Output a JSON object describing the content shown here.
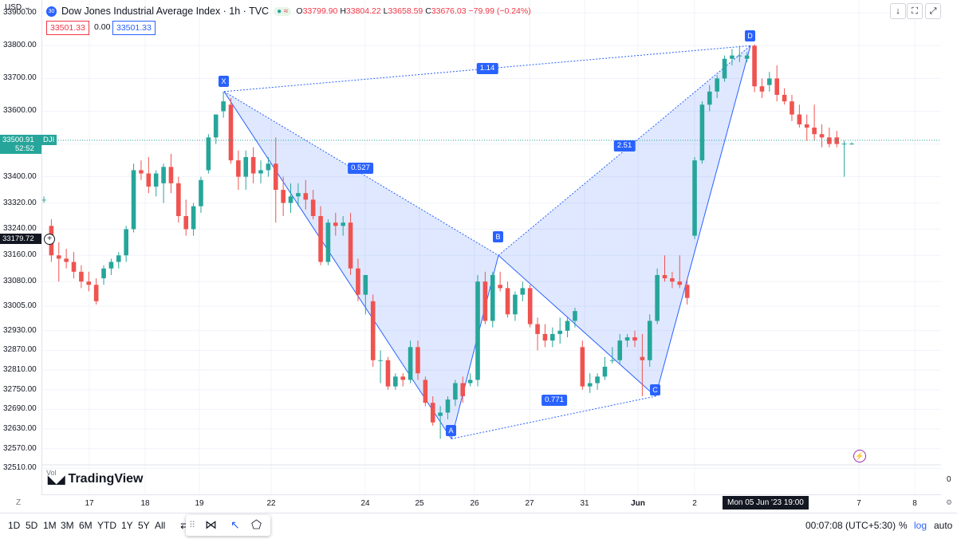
{
  "header": {
    "currency": "USD",
    "badge": "30",
    "symbol_title": "Dow Jones Industrial Average Index · 1h · TVC",
    "ohlc": {
      "open_label": "O",
      "open": "33799.90",
      "high_label": "H",
      "high": "33804.22",
      "low_label": "L",
      "low": "33658.59",
      "close_label": "C",
      "close": "33676.03",
      "change": "−79.99 (−0.24%)"
    },
    "inputs": [
      "33501.33",
      "0.00",
      "33501.33"
    ]
  },
  "y_axis": {
    "ticks": [
      "33900.00",
      "33800.00",
      "33700.00",
      "33600.00",
      "33500.00",
      "33400.00",
      "33320.00",
      "33240.00",
      "33160.00",
      "33080.00",
      "33005.00",
      "32930.00",
      "32870.00",
      "32810.00",
      "32750.00",
      "32690.00",
      "32630.00",
      "32570.00",
      "32510.00"
    ],
    "current_price": "33500.91",
    "current_symbol": "DJI",
    "countdown": "52:52",
    "crosshair_price": "33179.72"
  },
  "right_scale": {
    "label": "0"
  },
  "x_axis": {
    "ticks": [
      "17",
      "18",
      "19",
      "22",
      "24",
      "25",
      "26",
      "27",
      "31",
      "Jun",
      "2",
      "7",
      "8"
    ],
    "crosshair_label": "Mon 05 Jun '23   19:00"
  },
  "pattern": {
    "points": [
      "X",
      "A",
      "B",
      "C",
      "D"
    ],
    "ratios": [
      "1.14",
      "0.527",
      "2.51",
      "0.771"
    ]
  },
  "watermark": {
    "text": "TradingView",
    "vol_label": "Vol"
  },
  "bottom_bar": {
    "timeframes": [
      "1D",
      "5D",
      "1M",
      "3M",
      "6M",
      "YTD",
      "1Y",
      "5Y",
      "All"
    ],
    "clock": "00:07:08 (UTC+5:30)",
    "percent": "%",
    "log": "log",
    "auto": "auto"
  },
  "colors": {
    "up": "#26a69a",
    "down": "#ef5350",
    "pattern": "#2962ff",
    "fill": "rgba(41,98,255,0.15)"
  },
  "chart_data": {
    "type": "candlestick",
    "title": "Dow Jones Industrial Average Index · 1h · TVC",
    "ylim": [
      32450,
      33920
    ],
    "candles": [
      {
        "o": 33330,
        "h": 33340,
        "l": 33320,
        "c": 33330
      },
      {
        "o": 33250,
        "h": 33270,
        "l": 33140,
        "c": 33160
      },
      {
        "o": 33160,
        "h": 33200,
        "l": 33080,
        "c": 33150
      },
      {
        "o": 33150,
        "h": 33180,
        "l": 33120,
        "c": 33140
      },
      {
        "o": 33140,
        "h": 33170,
        "l": 33090,
        "c": 33110
      },
      {
        "o": 33110,
        "h": 33130,
        "l": 33060,
        "c": 33080
      },
      {
        "o": 33080,
        "h": 33110,
        "l": 33050,
        "c": 33070
      },
      {
        "o": 33070,
        "h": 33090,
        "l": 33010,
        "c": 33020
      },
      {
        "o": 33090,
        "h": 33130,
        "l": 33070,
        "c": 33120
      },
      {
        "o": 33120,
        "h": 33150,
        "l": 33100,
        "c": 33140
      },
      {
        "o": 33140,
        "h": 33170,
        "l": 33120,
        "c": 33160
      },
      {
        "o": 33160,
        "h": 33250,
        "l": 33140,
        "c": 33240
      },
      {
        "o": 33240,
        "h": 33440,
        "l": 33230,
        "c": 33420
      },
      {
        "o": 33420,
        "h": 33450,
        "l": 33390,
        "c": 33410
      },
      {
        "o": 33410,
        "h": 33460,
        "l": 33350,
        "c": 33370
      },
      {
        "o": 33370,
        "h": 33420,
        "l": 33340,
        "c": 33410
      },
      {
        "o": 33380,
        "h": 33440,
        "l": 33320,
        "c": 33430
      },
      {
        "o": 33430,
        "h": 33470,
        "l": 33350,
        "c": 33380
      },
      {
        "o": 33380,
        "h": 33400,
        "l": 33260,
        "c": 33280
      },
      {
        "o": 33280,
        "h": 33330,
        "l": 33220,
        "c": 33240
      },
      {
        "o": 33240,
        "h": 33320,
        "l": 33220,
        "c": 33310
      },
      {
        "o": 33310,
        "h": 33400,
        "l": 33290,
        "c": 33390
      },
      {
        "o": 33420,
        "h": 33530,
        "l": 33410,
        "c": 33520
      },
      {
        "o": 33520,
        "h": 33590,
        "l": 33500,
        "c": 33590
      },
      {
        "o": 33600,
        "h": 33660,
        "l": 33580,
        "c": 33630
      },
      {
        "o": 33620,
        "h": 33640,
        "l": 33440,
        "c": 33450
      },
      {
        "o": 33450,
        "h": 33480,
        "l": 33360,
        "c": 33400
      },
      {
        "o": 33400,
        "h": 33480,
        "l": 33360,
        "c": 33460
      },
      {
        "o": 33460,
        "h": 33490,
        "l": 33380,
        "c": 33410
      },
      {
        "o": 33410,
        "h": 33450,
        "l": 33380,
        "c": 33420
      },
      {
        "o": 33420,
        "h": 33460,
        "l": 33400,
        "c": 33440
      },
      {
        "o": 33440,
        "h": 33520,
        "l": 33260,
        "c": 33360
      },
      {
        "o": 33360,
        "h": 33400,
        "l": 33280,
        "c": 33320
      },
      {
        "o": 33320,
        "h": 33380,
        "l": 33290,
        "c": 33340
      },
      {
        "o": 33340,
        "h": 33380,
        "l": 33310,
        "c": 33350
      },
      {
        "o": 33350,
        "h": 33390,
        "l": 33300,
        "c": 33330
      },
      {
        "o": 33330,
        "h": 33360,
        "l": 33270,
        "c": 33280
      },
      {
        "o": 33280,
        "h": 33310,
        "l": 33130,
        "c": 33140
      },
      {
        "o": 33140,
        "h": 33270,
        "l": 33130,
        "c": 33260
      },
      {
        "o": 33260,
        "h": 33290,
        "l": 33220,
        "c": 33250
      },
      {
        "o": 33250,
        "h": 33280,
        "l": 33220,
        "c": 33260
      },
      {
        "o": 33260,
        "h": 33290,
        "l": 33100,
        "c": 33120
      },
      {
        "o": 33120,
        "h": 33150,
        "l": 33020,
        "c": 33040
      },
      {
        "o": 33040,
        "h": 33100,
        "l": 32980,
        "c": 33100
      },
      {
        "o": 33020,
        "h": 33040,
        "l": 32820,
        "c": 32840
      },
      {
        "o": 32840,
        "h": 32870,
        "l": 32770,
        "c": 32840
      },
      {
        "o": 32840,
        "h": 32850,
        "l": 32750,
        "c": 32760
      },
      {
        "o": 32760,
        "h": 32800,
        "l": 32750,
        "c": 32790
      },
      {
        "o": 32790,
        "h": 32800,
        "l": 32760,
        "c": 32780
      },
      {
        "o": 32780,
        "h": 32900,
        "l": 32770,
        "c": 32880
      },
      {
        "o": 32880,
        "h": 32900,
        "l": 32780,
        "c": 32800
      },
      {
        "o": 32780,
        "h": 32790,
        "l": 32700,
        "c": 32710
      },
      {
        "o": 32710,
        "h": 32730,
        "l": 32640,
        "c": 32650
      },
      {
        "o": 32670,
        "h": 32700,
        "l": 32600,
        "c": 32680
      },
      {
        "o": 32680,
        "h": 32730,
        "l": 32660,
        "c": 32720
      },
      {
        "o": 32720,
        "h": 32780,
        "l": 32700,
        "c": 32770
      },
      {
        "o": 32770,
        "h": 32790,
        "l": 32710,
        "c": 32730
      },
      {
        "o": 32770,
        "h": 32800,
        "l": 32760,
        "c": 32780
      },
      {
        "o": 32780,
        "h": 33100,
        "l": 32760,
        "c": 33080
      },
      {
        "o": 33080,
        "h": 33110,
        "l": 32950,
        "c": 32960
      },
      {
        "o": 32960,
        "h": 33110,
        "l": 32940,
        "c": 33100
      },
      {
        "o": 33070,
        "h": 33110,
        "l": 33050,
        "c": 33060
      },
      {
        "o": 33060,
        "h": 33080,
        "l": 32970,
        "c": 32980
      },
      {
        "o": 32980,
        "h": 33050,
        "l": 32960,
        "c": 33040
      },
      {
        "o": 33040,
        "h": 33080,
        "l": 33020,
        "c": 33060
      },
      {
        "o": 33060,
        "h": 33070,
        "l": 32940,
        "c": 32950
      },
      {
        "o": 32950,
        "h": 32970,
        "l": 32870,
        "c": 32920
      },
      {
        "o": 32920,
        "h": 32950,
        "l": 32880,
        "c": 32900
      },
      {
        "o": 32900,
        "h": 32940,
        "l": 32880,
        "c": 32920
      },
      {
        "o": 32920,
        "h": 32970,
        "l": 32890,
        "c": 32930
      },
      {
        "o": 32930,
        "h": 32970,
        "l": 32910,
        "c": 32960
      },
      {
        "o": 32960,
        "h": 33000,
        "l": 32940,
        "c": 32990
      },
      {
        "o": 32880,
        "h": 32900,
        "l": 32750,
        "c": 32760
      },
      {
        "o": 32760,
        "h": 32800,
        "l": 32740,
        "c": 32770
      },
      {
        "o": 32770,
        "h": 32800,
        "l": 32750,
        "c": 32790
      },
      {
        "o": 32790,
        "h": 32850,
        "l": 32780,
        "c": 32820
      },
      {
        "o": 32840,
        "h": 32880,
        "l": 32830,
        "c": 32840
      },
      {
        "o": 32840,
        "h": 32920,
        "l": 32830,
        "c": 32900
      },
      {
        "o": 32900,
        "h": 32920,
        "l": 32880,
        "c": 32910
      },
      {
        "o": 32910,
        "h": 32930,
        "l": 32880,
        "c": 32900
      },
      {
        "o": 32850,
        "h": 32920,
        "l": 32730,
        "c": 32840
      },
      {
        "o": 32840,
        "h": 32980,
        "l": 32820,
        "c": 32960
      },
      {
        "o": 32960,
        "h": 33120,
        "l": 32950,
        "c": 33100
      },
      {
        "o": 33100,
        "h": 33160,
        "l": 33080,
        "c": 33090
      },
      {
        "o": 33090,
        "h": 33110,
        "l": 33060,
        "c": 33080
      },
      {
        "o": 33080,
        "h": 33160,
        "l": 33060,
        "c": 33070
      },
      {
        "o": 33070,
        "h": 33090,
        "l": 33010,
        "c": 33030
      },
      {
        "o": 33220,
        "h": 33460,
        "l": 33210,
        "c": 33450
      },
      {
        "o": 33450,
        "h": 33630,
        "l": 33440,
        "c": 33620
      },
      {
        "o": 33620,
        "h": 33680,
        "l": 33600,
        "c": 33660
      },
      {
        "o": 33660,
        "h": 33710,
        "l": 33640,
        "c": 33700
      },
      {
        "o": 33700,
        "h": 33770,
        "l": 33690,
        "c": 33760
      },
      {
        "o": 33760,
        "h": 33790,
        "l": 33740,
        "c": 33770
      },
      {
        "o": 33770,
        "h": 33800,
        "l": 33750,
        "c": 33770
      },
      {
        "o": 33760,
        "h": 33780,
        "l": 33750,
        "c": 33770
      },
      {
        "o": 33800,
        "h": 33804,
        "l": 33658,
        "c": 33676
      },
      {
        "o": 33676,
        "h": 33700,
        "l": 33640,
        "c": 33660
      },
      {
        "o": 33680,
        "h": 33720,
        "l": 33660,
        "c": 33700
      },
      {
        "o": 33700,
        "h": 33740,
        "l": 33630,
        "c": 33650
      },
      {
        "o": 33650,
        "h": 33670,
        "l": 33620,
        "c": 33630
      },
      {
        "o": 33630,
        "h": 33650,
        "l": 33570,
        "c": 33590
      },
      {
        "o": 33590,
        "h": 33620,
        "l": 33550,
        "c": 33560
      },
      {
        "o": 33560,
        "h": 33590,
        "l": 33510,
        "c": 33550
      },
      {
        "o": 33550,
        "h": 33620,
        "l": 33510,
        "c": 33530
      },
      {
        "o": 33530,
        "h": 33560,
        "l": 33490,
        "c": 33520
      },
      {
        "o": 33520,
        "h": 33550,
        "l": 33490,
        "c": 33500
      },
      {
        "o": 33520,
        "h": 33540,
        "l": 33490,
        "c": 33500
      },
      {
        "o": 33500,
        "h": 33510,
        "l": 33400,
        "c": 33501
      },
      {
        "o": 33501,
        "h": 33505,
        "l": 33498,
        "c": 33501
      }
    ],
    "harmonic_pattern": {
      "X": 33660,
      "A": 32600,
      "B": 33160,
      "C": 32730,
      "D": 33800,
      "ratios": {
        "XA_AD": "1.14",
        "XB": "0.527",
        "BD": "2.51",
        "AC": "0.771"
      }
    }
  }
}
